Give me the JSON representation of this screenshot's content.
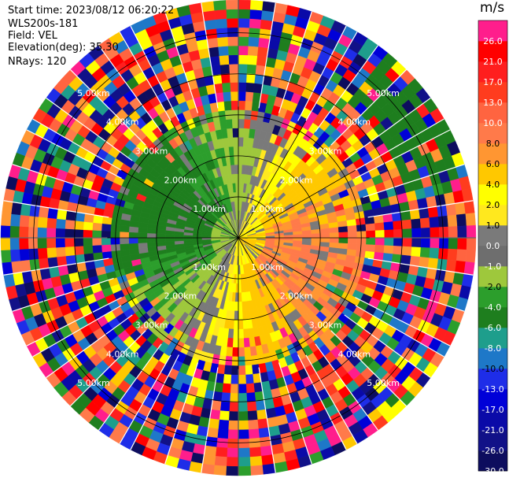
{
  "header": {
    "start_time": "Start time: 2023/08/12 06:20:22",
    "instrument": "WLS200s-181",
    "field": "Field: VEL",
    "elevation": "Elevation(deg): 35.30",
    "nrays": "NRays: 120"
  },
  "chart_data": {
    "type": "heatmap",
    "projection": "polar-ppi",
    "field": "VEL",
    "units": "m/s",
    "nrays": 120,
    "elevation_deg": 35.3,
    "range_ring_labels": [
      "1.00km",
      "2.00km",
      "3.00km",
      "4.00km",
      "5.00km"
    ],
    "range_rings_km": [
      1,
      2,
      3,
      4,
      5
    ],
    "colorbar": {
      "ticks": [
        -30.0,
        -26.0,
        -21.0,
        -17.0,
        -13.0,
        -10.0,
        -8.0,
        -6.0,
        -4.0,
        -2.0,
        -1.0,
        0.0,
        1.0,
        2.0,
        4.0,
        6.0,
        8.0,
        10.0,
        13.0,
        17.0,
        21.0,
        26.0
      ],
      "tick_labels": [
        "-30.0",
        "-26.0",
        "-21.0",
        "-17.0",
        "-13.0",
        "-10.0",
        "-8.0",
        "-6.0",
        "-4.0",
        "-2.0",
        "-1.0",
        "0.0",
        "1.0",
        "2.0",
        "4.0",
        "6.0",
        "8.0",
        "10.0",
        "13.0",
        "17.0",
        "21.0",
        "26.0"
      ],
      "colors": [
        "#0d0d5e",
        "#111188",
        "#0a0aa8",
        "#0000d8",
        "#1e2de8",
        "#1e78c8",
        "#1e9e8c",
        "#1e7e1e",
        "#2c9e2c",
        "#9ec83c",
        "#6e6e6e",
        "#7a7a7a",
        "#ffe81e",
        "#ffff00",
        "#ffc800",
        "#ff9632",
        "#ff7a4a",
        "#ff6440",
        "#ff3c1e",
        "#ff1e1e",
        "#ff0000",
        "#ff1e8c"
      ]
    },
    "range_bins_per_ray": 26,
    "max_range_km": 5.8
  }
}
